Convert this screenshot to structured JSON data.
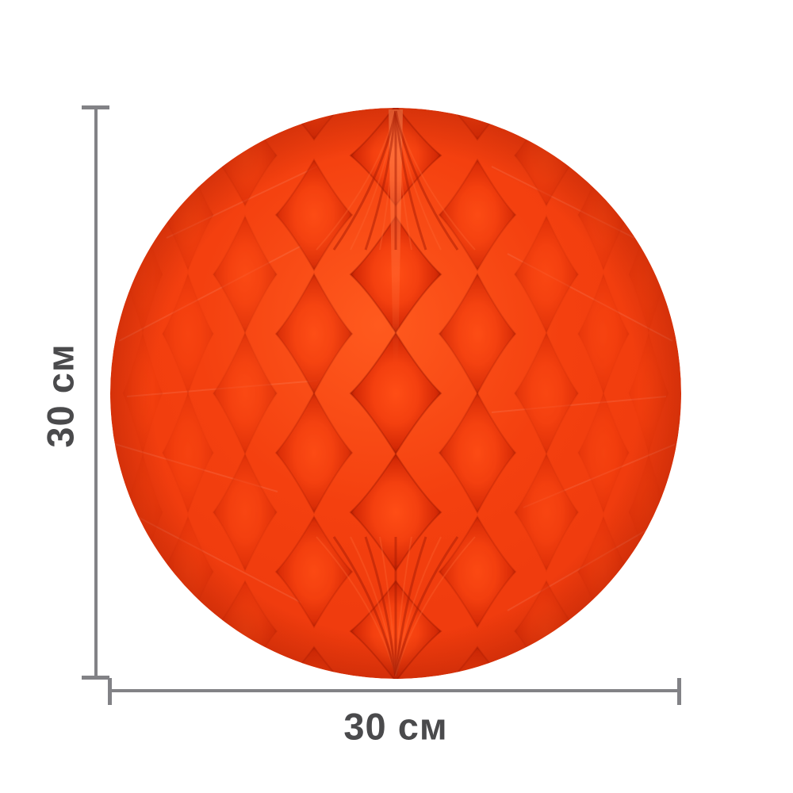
{
  "image": {
    "type": "product-photo",
    "subject": "orange honeycomb tissue paper ball decoration",
    "colors": {
      "background": "#ffffff",
      "base": "#f4400f",
      "base_deep": "#ee3a0d",
      "edge": "#e23208",
      "highlight": "#ff5a1e",
      "cell_bright": "#ff4d15",
      "cell_shade": "#d52a06",
      "groove": "#8f1400",
      "strip": "#ff7a45",
      "fan_dark": "#a81c03",
      "fan_light": "#ff6a35",
      "facet_light": "#ffffff",
      "dimension_line": "#828286",
      "label_text": "#4a4a4c"
    }
  },
  "annotations": {
    "height_label": "30 см",
    "width_label": "30 см"
  }
}
